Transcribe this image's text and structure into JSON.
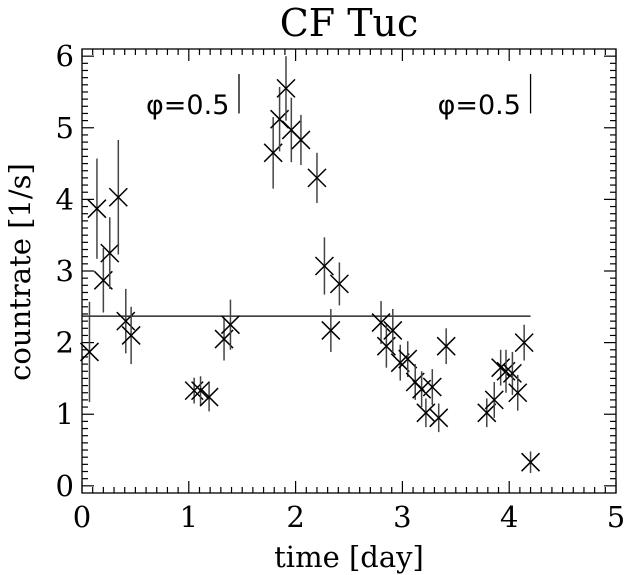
{
  "chart_data": {
    "type": "scatter",
    "title": "CF Tuc",
    "xlabel": "time [day]",
    "ylabel": "countrate [1/s]",
    "xlim": [
      0,
      5
    ],
    "ylim": [
      -0.1,
      6.1
    ],
    "x_ticks": [
      0,
      1,
      2,
      3,
      4,
      5
    ],
    "y_ticks": [
      0,
      1,
      2,
      3,
      4,
      5,
      6
    ],
    "x_tick_labels": [
      "0",
      "1",
      "2",
      "3",
      "4",
      "5"
    ],
    "y_tick_labels": [
      "0",
      "1",
      "2",
      "3",
      "4",
      "5",
      "6"
    ],
    "grid": false,
    "series": [
      {
        "marker": "x",
        "points": [
          {
            "x": 0.07,
            "y": 1.87,
            "err": 0.7
          },
          {
            "x": 0.14,
            "y": 3.87,
            "err": 0.7
          },
          {
            "x": 0.2,
            "y": 2.87,
            "err": 0.45
          },
          {
            "x": 0.26,
            "y": 3.25,
            "err": 0.5
          },
          {
            "x": 0.34,
            "y": 4.03,
            "err": 0.8
          },
          {
            "x": 0.41,
            "y": 2.3,
            "err": 0.45
          },
          {
            "x": 0.46,
            "y": 2.1,
            "err": 0.4
          },
          {
            "x": 1.05,
            "y": 1.33,
            "err": 0.18
          },
          {
            "x": 1.11,
            "y": 1.33,
            "err": 0.2
          },
          {
            "x": 1.19,
            "y": 1.24,
            "err": 0.2
          },
          {
            "x": 1.33,
            "y": 2.05,
            "err": 0.3
          },
          {
            "x": 1.39,
            "y": 2.25,
            "err": 0.35
          },
          {
            "x": 1.79,
            "y": 4.65,
            "err": 0.5
          },
          {
            "x": 1.85,
            "y": 5.12,
            "err": 0.45
          },
          {
            "x": 1.91,
            "y": 5.55,
            "err": 0.45
          },
          {
            "x": 1.96,
            "y": 4.97,
            "err": 0.45
          },
          {
            "x": 2.05,
            "y": 4.83,
            "err": 0.35
          },
          {
            "x": 2.2,
            "y": 4.3,
            "err": 0.35
          },
          {
            "x": 2.27,
            "y": 3.07,
            "err": 0.4
          },
          {
            "x": 2.33,
            "y": 2.17,
            "err": 0.3
          },
          {
            "x": 2.41,
            "y": 2.82,
            "err": 0.3
          },
          {
            "x": 2.8,
            "y": 2.28,
            "err": 0.3
          },
          {
            "x": 2.85,
            "y": 1.95,
            "err": 0.3
          },
          {
            "x": 2.91,
            "y": 2.17,
            "err": 0.3
          },
          {
            "x": 2.98,
            "y": 1.72,
            "err": 0.25
          },
          {
            "x": 3.05,
            "y": 1.77,
            "err": 0.25
          },
          {
            "x": 3.12,
            "y": 1.45,
            "err": 0.25
          },
          {
            "x": 3.18,
            "y": 1.35,
            "err": 0.25
          },
          {
            "x": 3.22,
            "y": 1.02,
            "err": 0.2
          },
          {
            "x": 3.28,
            "y": 1.38,
            "err": 0.25
          },
          {
            "x": 3.34,
            "y": 0.95,
            "err": 0.2
          },
          {
            "x": 3.41,
            "y": 1.95,
            "err": 0.25
          },
          {
            "x": 3.79,
            "y": 1.02,
            "err": 0.2
          },
          {
            "x": 3.86,
            "y": 1.2,
            "err": 0.25
          },
          {
            "x": 3.92,
            "y": 1.65,
            "err": 0.25
          },
          {
            "x": 3.97,
            "y": 1.6,
            "err": 0.3
          },
          {
            "x": 4.03,
            "y": 1.57,
            "err": 0.3
          },
          {
            "x": 4.08,
            "y": 1.3,
            "err": 0.25
          },
          {
            "x": 4.14,
            "y": 2.0,
            "err": 0.25
          },
          {
            "x": 4.2,
            "y": 0.33,
            "err": 0.15
          }
        ]
      }
    ],
    "reference_line": {
      "y": 2.37,
      "x_start": 0.0,
      "x_end": 4.2
    },
    "annotations": [
      {
        "text": "φ=0.5",
        "x": 1.38,
        "y": 5.33,
        "marker_x": 1.47,
        "marker_y0": 5.2,
        "marker_y1": 5.75
      },
      {
        "text": "φ=0.5",
        "x": 4.11,
        "y": 5.33,
        "marker_x": 4.2,
        "marker_y0": 5.2,
        "marker_y1": 5.75
      }
    ]
  }
}
